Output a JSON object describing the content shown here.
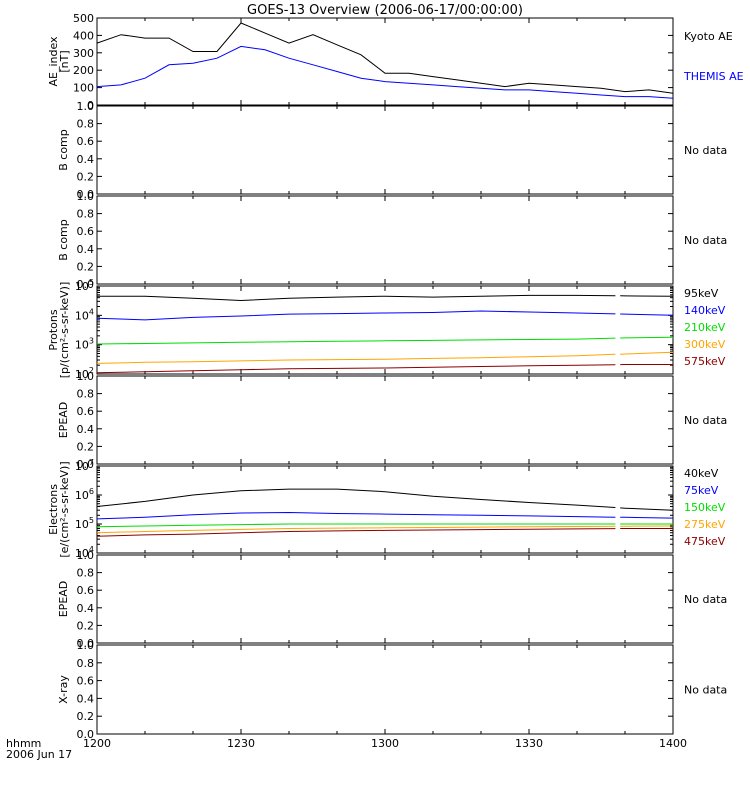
{
  "title": "GOES-13 Overview (2006-06-17/00:00:00)",
  "time_axis": {
    "label_line1": "hhmm",
    "label_line2": "2006 Jun 17",
    "ticks": [
      "1200",
      "1230",
      "1300",
      "1330",
      "1400"
    ]
  },
  "colors": {
    "black": "#000000",
    "blue": "#0000ff",
    "green": "#00dd00",
    "orange": "#ffa500",
    "darkred": "#8b0000"
  },
  "chart_data": [
    {
      "type": "line",
      "ylabel_lines": [
        "AE_index",
        "[nT]"
      ],
      "yticks": [
        "0",
        "100",
        "200",
        "300",
        "400",
        "500"
      ],
      "ylim": [
        0,
        520
      ],
      "yscale": "linear",
      "x": [
        "12:00",
        "12:05",
        "12:10",
        "12:15",
        "12:20",
        "12:25",
        "12:30",
        "12:35",
        "12:40",
        "12:45",
        "12:50",
        "12:55",
        "13:00",
        "13:05",
        "13:10",
        "13:15",
        "13:20",
        "13:25",
        "13:30",
        "13:35",
        "13:40",
        "13:45",
        "13:50",
        "13:55",
        "14:00"
      ],
      "series": [
        {
          "name": "Kyoto AE",
          "color": "black",
          "values": [
            370,
            420,
            400,
            400,
            320,
            320,
            490,
            430,
            370,
            420,
            360,
            300,
            190,
            190,
            170,
            150,
            130,
            110,
            130,
            120,
            110,
            100,
            80,
            90,
            70
          ]
        },
        {
          "name": "THEMIS AE",
          "color": "blue",
          "values": [
            110,
            120,
            160,
            240,
            250,
            280,
            350,
            330,
            280,
            240,
            200,
            160,
            140,
            130,
            120,
            110,
            100,
            90,
            90,
            80,
            70,
            60,
            50,
            50,
            40
          ]
        }
      ]
    },
    {
      "type": "line",
      "ylabel_lines": [
        "B comp"
      ],
      "yticks": [
        "0.0",
        "0.2",
        "0.4",
        "0.6",
        "0.8",
        "1.0"
      ],
      "ylim": [
        0,
        1
      ],
      "yscale": "linear",
      "no_data": "No data"
    },
    {
      "type": "line",
      "ylabel_lines": [
        "B comp"
      ],
      "yticks": [
        "0.0",
        "0.2",
        "0.4",
        "0.6",
        "0.8",
        "1.0"
      ],
      "ylim": [
        0,
        1
      ],
      "yscale": "linear",
      "no_data": "No data"
    },
    {
      "type": "line",
      "ylabel_lines": [
        "Protons",
        "[p/(cm²-s-sr-keV)]"
      ],
      "yticks": [
        "10²",
        "10³",
        "10⁴",
        "10⁵"
      ],
      "ylim": [
        100,
        100000
      ],
      "yscale": "log",
      "gap": [
        "13:48",
        "13:49"
      ],
      "x": [
        "12:00",
        "12:10",
        "12:20",
        "12:30",
        "12:40",
        "12:50",
        "13:00",
        "13:10",
        "13:20",
        "13:30",
        "13:40",
        "13:50",
        "14:00"
      ],
      "series": [
        {
          "name": "575keV",
          "color": "darkred",
          "values": [
            110,
            120,
            130,
            140,
            150,
            155,
            160,
            170,
            180,
            190,
            200,
            210,
            210
          ]
        },
        {
          "name": "300keV",
          "color": "orange",
          "values": [
            230,
            250,
            260,
            280,
            300,
            310,
            320,
            340,
            360,
            390,
            420,
            480,
            550
          ]
        },
        {
          "name": "210keV",
          "color": "green",
          "values": [
            1050,
            1100,
            1150,
            1200,
            1250,
            1300,
            1350,
            1400,
            1450,
            1500,
            1550,
            1700,
            1800
          ]
        },
        {
          "name": "140keV",
          "color": "blue",
          "values": [
            8000,
            7000,
            8500,
            9500,
            11000,
            11500,
            12000,
            12500,
            14000,
            13000,
            12000,
            11000,
            10000
          ]
        },
        {
          "name": "95keV",
          "color": "black",
          "values": [
            45000,
            45000,
            38000,
            32000,
            38000,
            42000,
            45000,
            42000,
            45000,
            48000,
            48000,
            46000,
            45000
          ]
        }
      ]
    },
    {
      "type": "line",
      "ylabel_lines": [
        "EPEAD"
      ],
      "yticks": [
        "0.0",
        "0.2",
        "0.4",
        "0.6",
        "0.8",
        "1.0"
      ],
      "ylim": [
        0,
        1
      ],
      "yscale": "linear",
      "no_data": "No data"
    },
    {
      "type": "line",
      "ylabel_lines": [
        "Electrons",
        "[e/(cm²-s-sr-keV)]"
      ],
      "yticks": [
        "10⁴",
        "10⁵",
        "10⁶",
        "10⁷"
      ],
      "ylim": [
        10000,
        10000000
      ],
      "yscale": "log",
      "gap": [
        "13:48",
        "13:49"
      ],
      "x": [
        "12:00",
        "12:10",
        "12:20",
        "12:30",
        "12:40",
        "12:50",
        "13:00",
        "13:10",
        "13:20",
        "13:30",
        "13:40",
        "13:50",
        "14:00"
      ],
      "series": [
        {
          "name": "475keV",
          "color": "darkred",
          "values": [
            38000,
            42000,
            45000,
            50000,
            55000,
            58000,
            60000,
            62000,
            64000,
            66000,
            68000,
            70000,
            70000
          ]
        },
        {
          "name": "275keV",
          "color": "orange",
          "values": [
            50000,
            55000,
            60000,
            65000,
            70000,
            72000,
            74000,
            76000,
            78000,
            80000,
            82000,
            84000,
            85000
          ]
        },
        {
          "name": "150keV",
          "color": "green",
          "values": [
            80000,
            85000,
            90000,
            95000,
            100000,
            100000,
            100000,
            100000,
            100000,
            100000,
            100000,
            100000,
            100000
          ]
        },
        {
          "name": "75keV",
          "color": "blue",
          "values": [
            150000,
            170000,
            210000,
            240000,
            250000,
            230000,
            220000,
            210000,
            200000,
            190000,
            180000,
            170000,
            160000
          ]
        },
        {
          "name": "40keV",
          "color": "black",
          "values": [
            400000,
            600000,
            1000000,
            1400000,
            1600000,
            1600000,
            1300000,
            900000,
            700000,
            550000,
            450000,
            350000,
            300000
          ]
        }
      ]
    },
    {
      "type": "line",
      "ylabel_lines": [
        "EPEAD"
      ],
      "yticks": [
        "0.0",
        "0.2",
        "0.4",
        "0.6",
        "0.8",
        "1.0"
      ],
      "ylim": [
        0,
        1
      ],
      "yscale": "linear",
      "no_data": "No data"
    },
    {
      "type": "line",
      "ylabel_lines": [
        "X-ray"
      ],
      "yticks": [
        "0.0",
        "0.2",
        "0.4",
        "0.6",
        "0.8",
        "1.0"
      ],
      "ylim": [
        0,
        1
      ],
      "yscale": "linear",
      "no_data": "No data"
    }
  ]
}
